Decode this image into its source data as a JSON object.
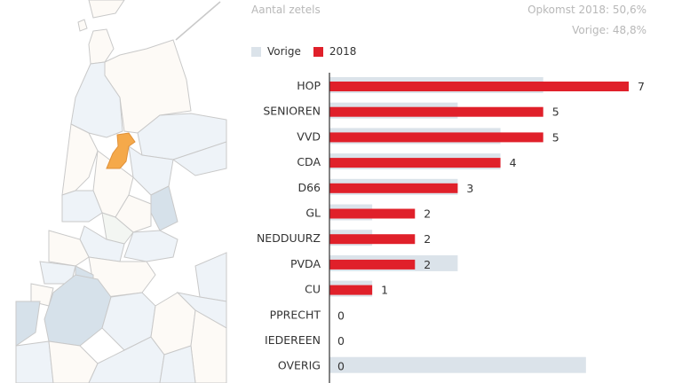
{
  "header": {
    "subtitle": "Aantal zetels",
    "turnout_2018": "Opkomst 2018: 50,6%",
    "turnout_previous": "Vorige: 48,8%"
  },
  "legend": [
    {
      "label": "Vorige",
      "color": "#dbe3ea"
    },
    {
      "label": "2018",
      "color": "#e0202a"
    }
  ],
  "chart_data": {
    "type": "bar",
    "orientation": "horizontal",
    "title": "Aantal zetels",
    "categories": [
      "HOP",
      "SENIOREN",
      "VVD",
      "CDA",
      "D66",
      "GL",
      "NEDDUURZ",
      "PVDA",
      "CU",
      "PPRECHT",
      "IEDEREEN",
      "OVERIG"
    ],
    "series": [
      {
        "name": "Vorige",
        "color": "#dbe3ea",
        "values": [
          5,
          3,
          4,
          4,
          3,
          1,
          1,
          3,
          1,
          0,
          0,
          6
        ]
      },
      {
        "name": "2018",
        "color": "#e0202a",
        "values": [
          7,
          5,
          5,
          4,
          3,
          2,
          2,
          2,
          1,
          0,
          0,
          0
        ]
      }
    ],
    "data_labels": [
      "7",
      "5",
      "5",
      "4",
      "3",
      "2",
      "2",
      "2",
      "1",
      "0",
      "0",
      "0"
    ],
    "xlim": [
      0,
      7
    ],
    "legend_position": "top-left"
  },
  "map": {
    "highlight_color": "#f5a94a",
    "region_color": "#fdfaf6",
    "alt_region_color": "#eef3f8",
    "dark_region_color": "#d6e1ea"
  }
}
